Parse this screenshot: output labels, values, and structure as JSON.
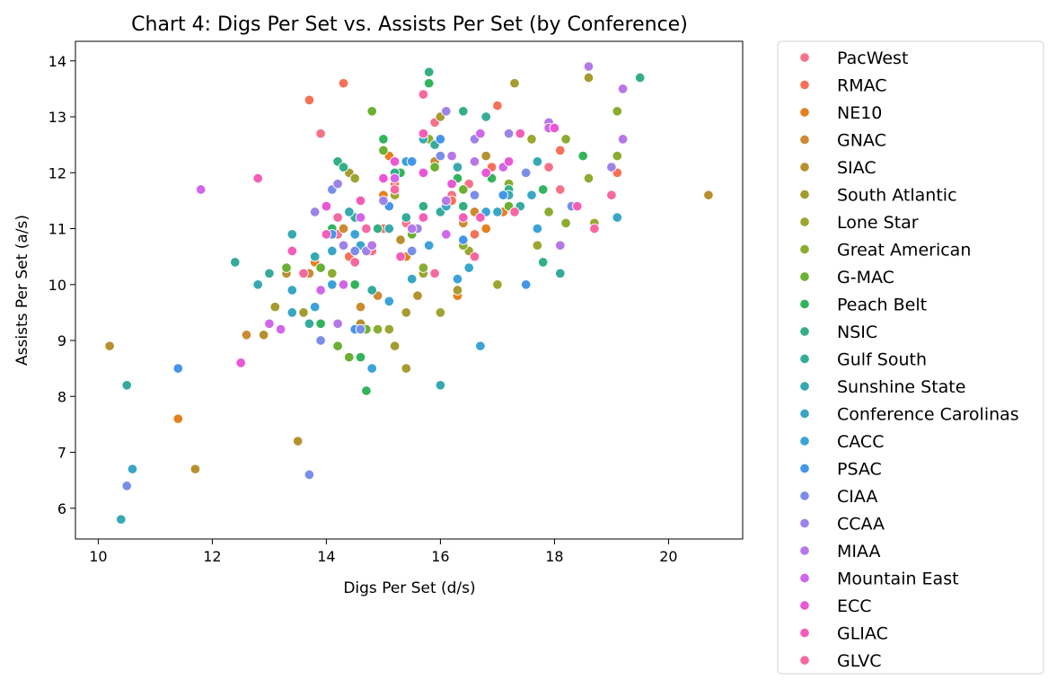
{
  "chart_data": {
    "type": "scatter",
    "title": "Chart 4: Digs Per Set vs. Assists Per Set (by Conference)",
    "xlabel": "Digs Per Set (d/s)",
    "ylabel": "Assists Per Set (a/s)",
    "xlim": [
      9.6,
      21.3
    ],
    "ylim": [
      5.45,
      14.35
    ],
    "xticks": [
      10,
      12,
      14,
      16,
      18,
      20
    ],
    "yticks": [
      6,
      7,
      8,
      9,
      10,
      11,
      12,
      13,
      14
    ],
    "grid": false,
    "legend_placement": "outside-right",
    "series": [
      {
        "name": "PacWest",
        "color": "#f77189",
        "points": [
          [
            13.9,
            12.7
          ],
          [
            15.9,
            12.9
          ],
          [
            16.5,
            11.8
          ],
          [
            18.1,
            11.7
          ],
          [
            14.2,
            10.9
          ],
          [
            16.8,
            13.0
          ],
          [
            15.4,
            11.1
          ],
          [
            17.9,
            12.1
          ],
          [
            14.8,
            10.6
          ],
          [
            16.2,
            11.6
          ]
        ]
      },
      {
        "name": "RMAC",
        "color": "#f67158",
        "points": [
          [
            13.7,
            13.3
          ],
          [
            14.3,
            13.6
          ],
          [
            17.0,
            13.2
          ],
          [
            18.1,
            12.4
          ],
          [
            16.9,
            12.1
          ],
          [
            15.2,
            11.8
          ],
          [
            15.0,
            11.0
          ],
          [
            19.1,
            12.0
          ],
          [
            14.4,
            10.5
          ],
          [
            16.6,
            10.9
          ],
          [
            16.2,
            11.5
          ]
        ]
      },
      {
        "name": "NE10",
        "color": "#e5801e",
        "points": [
          [
            11.4,
            7.6
          ],
          [
            16.3,
            9.8
          ],
          [
            17.1,
            11.3
          ],
          [
            14.2,
            11.2
          ],
          [
            15.4,
            10.5
          ],
          [
            15.0,
            11.6
          ],
          [
            16.8,
            11.0
          ],
          [
            13.8,
            10.4
          ],
          [
            15.1,
            12.3
          ]
        ]
      },
      {
        "name": "GNAC",
        "color": "#cc8a31",
        "points": [
          [
            12.6,
            9.1
          ],
          [
            13.7,
            10.2
          ],
          [
            14.3,
            11.0
          ],
          [
            14.9,
            9.8
          ],
          [
            15.9,
            12.2
          ],
          [
            16.4,
            11.1
          ],
          [
            14.6,
            9.6
          ],
          [
            15.7,
            12.0
          ],
          [
            16.6,
            11.3
          ]
        ]
      },
      {
        "name": "SIAC",
        "color": "#b79030",
        "points": [
          [
            10.2,
            8.9
          ],
          [
            11.7,
            6.7
          ],
          [
            13.5,
            7.2
          ],
          [
            12.9,
            9.1
          ],
          [
            13.3,
            10.2
          ],
          [
            14.6,
            9.3
          ],
          [
            15.3,
            10.8
          ],
          [
            15.6,
            9.8
          ],
          [
            16.8,
            12.3
          ],
          [
            20.7,
            11.6
          ]
        ]
      },
      {
        "name": "South Atlantic",
        "color": "#a69b30",
        "points": [
          [
            13.1,
            9.6
          ],
          [
            13.6,
            9.5
          ],
          [
            14.4,
            12.0
          ],
          [
            15.2,
            8.9
          ],
          [
            15.4,
            9.5
          ],
          [
            16.0,
            13.0
          ],
          [
            16.3,
            9.9
          ],
          [
            17.3,
            13.6
          ],
          [
            18.0,
            12.8
          ],
          [
            18.6,
            13.7
          ],
          [
            15.4,
            8.5
          ]
        ]
      },
      {
        "name": "Lone Star",
        "color": "#9ca530",
        "points": [
          [
            14.5,
            11.9
          ],
          [
            15.2,
            11.6
          ],
          [
            15.7,
            10.2
          ],
          [
            16.0,
            9.5
          ],
          [
            17.0,
            10.0
          ],
          [
            17.7,
            10.7
          ],
          [
            18.1,
            10.7
          ],
          [
            18.7,
            11.1
          ],
          [
            17.6,
            12.6
          ],
          [
            16.5,
            10.6
          ],
          [
            15.1,
            9.2
          ]
        ]
      },
      {
        "name": "Great American",
        "color": "#8bac31",
        "points": [
          [
            14.1,
            10.2
          ],
          [
            14.9,
            9.2
          ],
          [
            15.8,
            12.6
          ],
          [
            16.4,
            10.7
          ],
          [
            17.2,
            11.8
          ],
          [
            18.2,
            12.6
          ],
          [
            18.6,
            11.9
          ],
          [
            19.1,
            13.1
          ],
          [
            19.1,
            12.3
          ],
          [
            18.2,
            11.1
          ],
          [
            17.9,
            11.3
          ],
          [
            15.7,
            10.3
          ]
        ]
      },
      {
        "name": "G-MAC",
        "color": "#6ab031",
        "points": [
          [
            13.3,
            10.3
          ],
          [
            14.2,
            8.9
          ],
          [
            14.4,
            8.7
          ],
          [
            14.7,
            9.2
          ],
          [
            14.8,
            13.1
          ],
          [
            15.0,
            12.4
          ],
          [
            15.5,
            10.9
          ],
          [
            15.9,
            12.1
          ],
          [
            16.4,
            11.7
          ],
          [
            17.2,
            11.4
          ],
          [
            17.3,
            11.3
          ],
          [
            13.9,
            10.3
          ]
        ]
      },
      {
        "name": "Peach Belt",
        "color": "#32b45c",
        "points": [
          [
            13.9,
            9.3
          ],
          [
            14.1,
            11.0
          ],
          [
            14.5,
            10.0
          ],
          [
            14.6,
            8.7
          ],
          [
            14.7,
            8.1
          ],
          [
            15.0,
            12.6
          ],
          [
            15.3,
            12.0
          ],
          [
            15.8,
            13.6
          ],
          [
            16.3,
            11.9
          ],
          [
            16.9,
            11.9
          ],
          [
            17.8,
            11.7
          ],
          [
            18.5,
            12.3
          ]
        ]
      },
      {
        "name": "NSIC",
        "color": "#34af84",
        "points": [
          [
            14.2,
            12.2
          ],
          [
            14.3,
            12.1
          ],
          [
            14.9,
            11.0
          ],
          [
            15.2,
            12.0
          ],
          [
            15.7,
            11.4
          ],
          [
            15.8,
            13.8
          ],
          [
            16.4,
            13.1
          ],
          [
            17.2,
            11.7
          ],
          [
            17.8,
            10.4
          ],
          [
            19.5,
            13.7
          ],
          [
            16.4,
            11.4
          ]
        ]
      },
      {
        "name": "Gulf South",
        "color": "#36ab9c",
        "points": [
          [
            10.5,
            8.2
          ],
          [
            12.4,
            10.4
          ],
          [
            13.0,
            10.2
          ],
          [
            13.7,
            9.3
          ],
          [
            14.5,
            11.2
          ],
          [
            14.8,
            9.9
          ],
          [
            15.4,
            11.2
          ],
          [
            15.9,
            12.5
          ],
          [
            16.0,
            11.3
          ],
          [
            16.8,
            13.0
          ],
          [
            17.4,
            11.4
          ],
          [
            18.1,
            10.2
          ]
        ]
      },
      {
        "name": "Sunshine State",
        "color": "#38a9b1",
        "points": [
          [
            10.4,
            5.8
          ],
          [
            12.8,
            10.0
          ],
          [
            13.4,
            10.9
          ],
          [
            13.8,
            10.5
          ],
          [
            14.4,
            11.3
          ],
          [
            15.1,
            11.0
          ],
          [
            15.7,
            12.6
          ],
          [
            16.0,
            8.2
          ],
          [
            16.3,
            12.1
          ],
          [
            16.7,
            11.2
          ],
          [
            17.2,
            11.6
          ],
          [
            17.7,
            12.2
          ]
        ]
      },
      {
        "name": "Conference Carolinas",
        "color": "#39a6c7",
        "points": [
          [
            10.6,
            6.7
          ],
          [
            13.4,
            9.5
          ],
          [
            13.4,
            9.9
          ],
          [
            14.1,
            10.6
          ],
          [
            14.6,
            10.7
          ],
          [
            15.5,
            10.1
          ],
          [
            16.1,
            11.4
          ],
          [
            16.5,
            10.3
          ],
          [
            17.0,
            11.3
          ],
          [
            17.6,
            11.6
          ],
          [
            19.1,
            11.2
          ]
        ]
      },
      {
        "name": "CACC",
        "color": "#3ba3d8",
        "points": [
          [
            13.8,
            9.6
          ],
          [
            14.1,
            10.0
          ],
          [
            14.5,
            10.9
          ],
          [
            14.8,
            8.5
          ],
          [
            15.1,
            9.7
          ],
          [
            15.4,
            12.2
          ],
          [
            15.8,
            10.7
          ],
          [
            16.3,
            10.1
          ],
          [
            16.8,
            11.3
          ],
          [
            17.7,
            11.0
          ],
          [
            16.7,
            8.9
          ]
        ]
      },
      {
        "name": "PSAC",
        "color": "#4595e9",
        "points": [
          [
            11.4,
            8.5
          ],
          [
            14.1,
            10.9
          ],
          [
            14.6,
            9.2
          ],
          [
            15.1,
            11.4
          ],
          [
            15.5,
            12.2
          ],
          [
            16.4,
            10.8
          ],
          [
            17.1,
            11.6
          ],
          [
            17.5,
            10.0
          ],
          [
            16.0,
            12.6
          ],
          [
            14.5,
            9.2
          ]
        ]
      },
      {
        "name": "CIAA",
        "color": "#7a8ee9",
        "points": [
          [
            10.5,
            6.4
          ],
          [
            13.7,
            6.6
          ],
          [
            13.9,
            9.0
          ],
          [
            14.1,
            11.7
          ],
          [
            14.6,
            9.2
          ],
          [
            15.5,
            10.6
          ],
          [
            16.0,
            12.3
          ],
          [
            16.6,
            11.6
          ],
          [
            17.5,
            12.0
          ],
          [
            18.3,
            11.4
          ],
          [
            14.5,
            10.6
          ]
        ]
      },
      {
        "name": "CCAA",
        "color": "#9d83e8",
        "points": [
          [
            13.8,
            11.3
          ],
          [
            14.3,
            10.7
          ],
          [
            14.7,
            10.6
          ],
          [
            15.0,
            11.5
          ],
          [
            15.6,
            11.0
          ],
          [
            16.1,
            13.1
          ],
          [
            16.6,
            12.6
          ],
          [
            17.2,
            12.7
          ],
          [
            18.4,
            11.4
          ],
          [
            19.0,
            12.1
          ],
          [
            14.2,
            11.8
          ]
        ]
      },
      {
        "name": "MIAA",
        "color": "#b677e8",
        "points": [
          [
            14.2,
            9.3
          ],
          [
            14.8,
            10.7
          ],
          [
            15.5,
            11.0
          ],
          [
            16.1,
            11.5
          ],
          [
            16.6,
            12.2
          ],
          [
            17.9,
            12.9
          ],
          [
            18.1,
            10.7
          ],
          [
            18.6,
            13.9
          ],
          [
            19.2,
            13.5
          ],
          [
            19.2,
            12.6
          ],
          [
            16.2,
            12.3
          ]
        ]
      },
      {
        "name": "Mountain East",
        "color": "#d066ea",
        "points": [
          [
            11.8,
            11.7
          ],
          [
            13.0,
            9.3
          ],
          [
            13.2,
            9.2
          ],
          [
            13.9,
            9.9
          ],
          [
            14.3,
            10.0
          ],
          [
            15.2,
            11.9
          ],
          [
            16.1,
            10.9
          ],
          [
            16.7,
            12.7
          ],
          [
            17.1,
            12.1
          ],
          [
            17.9,
            12.8
          ],
          [
            14.6,
            11.2
          ]
        ]
      },
      {
        "name": "ECC",
        "color": "#eb56d7",
        "points": [
          [
            12.5,
            8.6
          ],
          [
            13.4,
            10.6
          ],
          [
            14.0,
            11.4
          ],
          [
            14.6,
            11.5
          ],
          [
            15.0,
            11.9
          ],
          [
            15.7,
            12.0
          ],
          [
            16.2,
            11.8
          ],
          [
            16.8,
            12.0
          ],
          [
            17.2,
            12.2
          ],
          [
            18.0,
            12.8
          ],
          [
            15.2,
            12.2
          ]
        ]
      },
      {
        "name": "GLIAC",
        "color": "#f35eb8",
        "points": [
          [
            12.8,
            11.9
          ],
          [
            13.4,
            10.6
          ],
          [
            14.0,
            10.9
          ],
          [
            14.6,
            11.5
          ],
          [
            15.3,
            10.5
          ],
          [
            15.7,
            12.7
          ],
          [
            16.4,
            11.2
          ],
          [
            16.7,
            11.2
          ],
          [
            17.4,
            12.7
          ],
          [
            18.4,
            11.4
          ],
          [
            15.7,
            11.2
          ]
        ]
      },
      {
        "name": "GLVC",
        "color": "#f6689f",
        "points": [
          [
            13.6,
            10.2
          ],
          [
            14.2,
            11.2
          ],
          [
            14.7,
            11.0
          ],
          [
            15.2,
            11.7
          ],
          [
            15.7,
            13.4
          ],
          [
            15.9,
            10.2
          ],
          [
            16.6,
            10.5
          ],
          [
            17.3,
            11.3
          ],
          [
            18.7,
            11.0
          ],
          [
            19.0,
            11.6
          ],
          [
            14.5,
            10.4
          ]
        ]
      }
    ]
  }
}
